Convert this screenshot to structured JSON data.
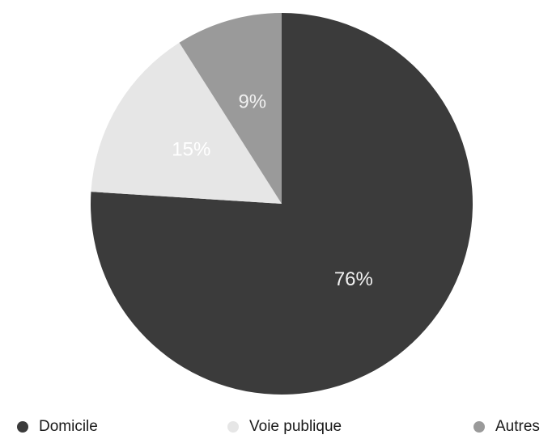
{
  "chart_data": {
    "type": "pie",
    "start_angle_deg": 0,
    "direction": "clockwise",
    "legend_position": "bottom",
    "slices": [
      {
        "name": "Domicile",
        "value": 76,
        "label": "76%",
        "color": "#3b3b3b",
        "label_color": "#f2f2f2"
      },
      {
        "name": "Voie publique",
        "value": 15,
        "label": "15%",
        "color": "#e6e6e6",
        "label_color": "#ffffff"
      },
      {
        "name": "Autres",
        "value": 9,
        "label": "9%",
        "color": "#9a9a9a",
        "label_color": "#f0f0f0"
      }
    ]
  }
}
